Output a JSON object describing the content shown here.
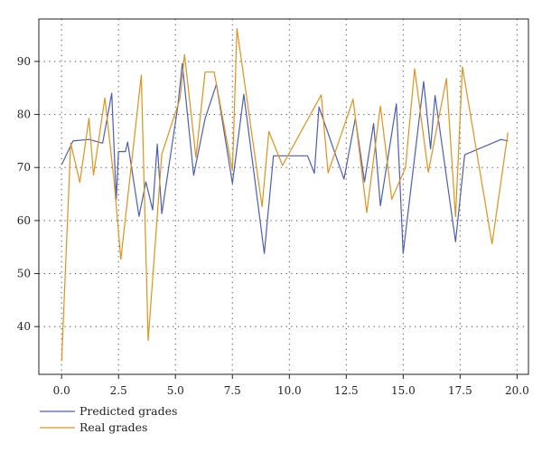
{
  "chart_data": {
    "type": "line",
    "title": "",
    "xlabel": "",
    "ylabel": "",
    "xlim": [
      -1.0,
      20.5
    ],
    "ylim": [
      31,
      98
    ],
    "x_ticks": [
      0.0,
      2.5,
      5.0,
      7.5,
      10.0,
      12.5,
      15.0,
      17.5,
      20.0
    ],
    "x_tick_labels": [
      "0.0",
      "2.5",
      "5.0",
      "7.5",
      "10.0",
      "12.5",
      "15.0",
      "17.5",
      "20.0"
    ],
    "y_ticks": [
      40,
      50,
      60,
      70,
      80,
      90
    ],
    "y_tick_labels": [
      "40",
      "50",
      "60",
      "70",
      "80",
      "90"
    ],
    "grid": true,
    "legend_position": "bottom-left",
    "series": [
      {
        "name": "Predicted grades",
        "color": "#4a5fb5",
        "points": [
          [
            0.0,
            70.5
          ],
          [
            0.5,
            75.0
          ],
          [
            1.2,
            75.3
          ],
          [
            1.8,
            74.6
          ],
          [
            2.2,
            84.0
          ],
          [
            2.4,
            64.0
          ],
          [
            2.5,
            73.0
          ],
          [
            2.8,
            73.0
          ],
          [
            2.9,
            74.8
          ],
          [
            3.4,
            60.8
          ],
          [
            3.7,
            67.3
          ],
          [
            4.0,
            62.0
          ],
          [
            4.2,
            74.4
          ],
          [
            4.4,
            61.3
          ],
          [
            5.1,
            81.5
          ],
          [
            5.3,
            89.6
          ],
          [
            5.8,
            68.5
          ],
          [
            6.3,
            79.2
          ],
          [
            6.8,
            85.7
          ],
          [
            7.5,
            67.0
          ],
          [
            8.0,
            83.8
          ],
          [
            8.9,
            53.8
          ],
          [
            9.3,
            72.2
          ],
          [
            10.1,
            72.2
          ],
          [
            10.8,
            72.2
          ],
          [
            11.1,
            68.9
          ],
          [
            11.3,
            81.4
          ],
          [
            12.4,
            67.8
          ],
          [
            12.9,
            79.3
          ],
          [
            13.3,
            67.3
          ],
          [
            13.7,
            78.3
          ],
          [
            14.0,
            62.8
          ],
          [
            14.7,
            82.0
          ],
          [
            15.0,
            53.8
          ],
          [
            15.9,
            86.2
          ],
          [
            16.2,
            73.5
          ],
          [
            16.4,
            83.6
          ],
          [
            17.3,
            56.0
          ],
          [
            17.7,
            72.4
          ],
          [
            19.3,
            75.3
          ],
          [
            19.6,
            75.0
          ]
        ]
      },
      {
        "name": "Real grades",
        "color": "#e0921a",
        "points": [
          [
            0.0,
            33.5
          ],
          [
            0.4,
            74.6
          ],
          [
            0.8,
            67.2
          ],
          [
            1.2,
            79.3
          ],
          [
            1.4,
            68.6
          ],
          [
            1.9,
            83.1
          ],
          [
            2.3,
            67.6
          ],
          [
            2.6,
            52.7
          ],
          [
            3.5,
            87.4
          ],
          [
            3.8,
            37.4
          ],
          [
            4.4,
            72.5
          ],
          [
            5.2,
            83.0
          ],
          [
            5.4,
            91.3
          ],
          [
            5.9,
            71.9
          ],
          [
            6.3,
            88.0
          ],
          [
            6.7,
            88.0
          ],
          [
            7.5,
            69.4
          ],
          [
            7.7,
            96.2
          ],
          [
            8.8,
            62.6
          ],
          [
            9.1,
            76.8
          ],
          [
            9.7,
            70.4
          ],
          [
            11.4,
            83.7
          ],
          [
            11.7,
            69.0
          ],
          [
            12.5,
            79.0
          ],
          [
            12.8,
            82.9
          ],
          [
            13.4,
            61.5
          ],
          [
            14.0,
            81.6
          ],
          [
            14.5,
            64.0
          ],
          [
            15.1,
            70.0
          ],
          [
            15.5,
            88.6
          ],
          [
            16.1,
            69.1
          ],
          [
            16.9,
            86.8
          ],
          [
            17.3,
            60.7
          ],
          [
            17.6,
            89.0
          ],
          [
            18.9,
            55.6
          ],
          [
            19.6,
            76.6
          ]
        ]
      }
    ]
  }
}
